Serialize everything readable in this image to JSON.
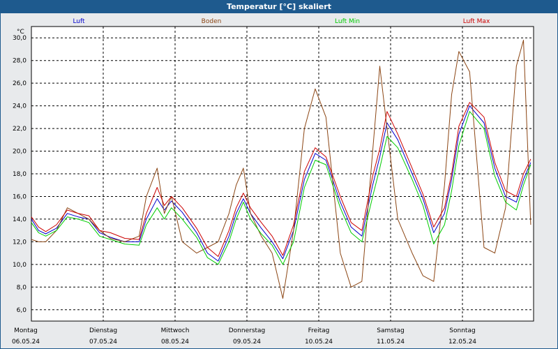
{
  "title": "Temperatur [°C] skaliert",
  "chart_data": {
    "type": "line",
    "ylabel": "°C",
    "ylim": [
      5.0,
      31.0
    ],
    "yticks": [
      "30,0",
      "28,0",
      "26,0",
      "24,0",
      "22,0",
      "20,0",
      "18,0",
      "16,0",
      "14,0",
      "12,0",
      "10,0",
      "8,0",
      "6,0"
    ],
    "ytick_values": [
      30,
      28,
      26,
      24,
      22,
      20,
      18,
      16,
      14,
      12,
      10,
      8,
      6
    ],
    "x_days": 7,
    "day_labels": [
      {
        "weekday": "Montag",
        "date": "06.05.24"
      },
      {
        "weekday": "Dienstag",
        "date": "07.05.24"
      },
      {
        "weekday": "Mittwoch",
        "date": "08.05.24"
      },
      {
        "weekday": "Donnerstag",
        "date": "09.05.24"
      },
      {
        "weekday": "Freitag",
        "date": "10.05.24"
      },
      {
        "weekday": "Samstag",
        "date": "11.05.24"
      },
      {
        "weekday": "Sonntag",
        "date": "12.05.24"
      }
    ],
    "grid": true,
    "legend_position": "top",
    "series": [
      {
        "name": "Luft",
        "color": "#0000cc",
        "x": [
          0,
          0.1,
          0.2,
          0.35,
          0.5,
          0.65,
          0.8,
          0.95,
          1.1,
          1.3,
          1.5,
          1.6,
          1.75,
          1.85,
          1.95,
          2.1,
          2.3,
          2.45,
          2.6,
          2.75,
          2.85,
          2.95,
          3.05,
          3.2,
          3.35,
          3.5,
          3.65,
          3.8,
          3.95,
          4.1,
          4.3,
          4.45,
          4.6,
          4.75,
          4.85,
          4.95,
          5.1,
          5.3,
          5.45,
          5.6,
          5.75,
          5.85,
          5.95,
          6.1,
          6.3,
          6.45,
          6.6,
          6.75,
          6.85,
          6.95
        ],
        "values": [
          14.0,
          13.0,
          12.7,
          13.2,
          14.5,
          14.2,
          14.0,
          12.8,
          12.4,
          12.0,
          12.0,
          14.0,
          15.8,
          14.8,
          15.6,
          14.6,
          12.8,
          11.0,
          10.3,
          12.5,
          14.5,
          15.8,
          14.5,
          13.2,
          12.0,
          10.5,
          13.0,
          17.5,
          19.8,
          19.2,
          15.5,
          13.3,
          12.5,
          17.0,
          19.5,
          22.5,
          21.0,
          18.0,
          15.8,
          12.8,
          14.5,
          17.5,
          21.5,
          24.0,
          22.5,
          18.5,
          16.0,
          15.5,
          17.5,
          19.0
        ]
      },
      {
        "name": "Boden",
        "color": "#8b4513",
        "x": [
          0,
          0.1,
          0.2,
          0.35,
          0.5,
          0.65,
          0.8,
          0.95,
          1.1,
          1.3,
          1.5,
          1.6,
          1.75,
          1.85,
          1.95,
          2.1,
          2.3,
          2.45,
          2.6,
          2.75,
          2.85,
          2.95,
          3.05,
          3.2,
          3.35,
          3.5,
          3.65,
          3.8,
          3.95,
          4.1,
          4.3,
          4.45,
          4.6,
          4.75,
          4.85,
          4.95,
          5.1,
          5.3,
          5.45,
          5.6,
          5.75,
          5.85,
          5.95,
          6.1,
          6.3,
          6.45,
          6.6,
          6.75,
          6.85,
          6.95
        ],
        "values": [
          12.2,
          12.0,
          12.0,
          13.0,
          15.0,
          14.5,
          14.0,
          13.0,
          12.3,
          12.0,
          12.5,
          16.0,
          18.5,
          14.5,
          16.0,
          12.0,
          11.0,
          11.5,
          12.0,
          14.5,
          17.0,
          18.5,
          14.5,
          12.5,
          11.0,
          7.0,
          13.0,
          22.0,
          25.5,
          23.0,
          11.0,
          8.0,
          8.5,
          20.0,
          27.5,
          22.0,
          14.0,
          11.0,
          9.0,
          8.5,
          17.0,
          25.0,
          28.8,
          27.0,
          11.5,
          11.0,
          15.0,
          27.5,
          29.8,
          13.5
        ]
      },
      {
        "name": "Luft Min",
        "color": "#00cc00",
        "x": [
          0,
          0.1,
          0.2,
          0.35,
          0.5,
          0.65,
          0.8,
          0.95,
          1.1,
          1.3,
          1.5,
          1.6,
          1.75,
          1.85,
          1.95,
          2.1,
          2.3,
          2.45,
          2.6,
          2.75,
          2.85,
          2.95,
          3.05,
          3.2,
          3.35,
          3.5,
          3.65,
          3.8,
          3.95,
          4.1,
          4.3,
          4.45,
          4.6,
          4.75,
          4.85,
          4.95,
          5.1,
          5.3,
          5.45,
          5.6,
          5.75,
          5.85,
          5.95,
          6.1,
          6.3,
          6.45,
          6.6,
          6.75,
          6.85,
          6.95
        ],
        "values": [
          13.7,
          12.8,
          12.5,
          13.0,
          14.2,
          14.0,
          13.7,
          12.5,
          12.2,
          11.8,
          11.7,
          13.5,
          15.0,
          14.0,
          15.0,
          14.0,
          12.4,
          10.6,
          10.0,
          12.0,
          14.0,
          15.5,
          14.0,
          12.7,
          11.7,
          10.0,
          12.0,
          16.8,
          19.2,
          18.8,
          15.0,
          12.8,
          12.0,
          16.0,
          18.5,
          21.3,
          20.3,
          17.5,
          15.2,
          11.8,
          13.5,
          16.5,
          20.5,
          23.5,
          22.0,
          17.8,
          15.5,
          14.8,
          17.0,
          18.8
        ]
      },
      {
        "name": "Luft Max",
        "color": "#cc0000",
        "x": [
          0,
          0.1,
          0.2,
          0.35,
          0.5,
          0.65,
          0.8,
          0.95,
          1.1,
          1.3,
          1.5,
          1.6,
          1.75,
          1.85,
          1.95,
          2.1,
          2.3,
          2.45,
          2.6,
          2.75,
          2.85,
          2.95,
          3.05,
          3.2,
          3.35,
          3.5,
          3.65,
          3.8,
          3.95,
          4.1,
          4.3,
          4.45,
          4.6,
          4.75,
          4.85,
          4.95,
          5.1,
          5.3,
          5.45,
          5.6,
          5.75,
          5.85,
          5.95,
          6.1,
          6.3,
          6.45,
          6.6,
          6.75,
          6.85,
          6.95
        ],
        "values": [
          14.2,
          13.3,
          12.9,
          13.5,
          14.8,
          14.5,
          14.3,
          13.0,
          12.8,
          12.3,
          12.2,
          14.5,
          16.8,
          15.2,
          16.0,
          15.0,
          13.2,
          11.5,
          10.7,
          13.0,
          15.0,
          16.3,
          15.0,
          13.7,
          12.5,
          10.8,
          13.5,
          18.2,
          20.3,
          19.5,
          16.0,
          13.7,
          13.0,
          17.8,
          20.2,
          23.5,
          21.5,
          18.5,
          16.2,
          13.3,
          15.0,
          18.0,
          22.2,
          24.3,
          23.0,
          19.0,
          16.5,
          16.0,
          18.0,
          19.3
        ]
      }
    ]
  }
}
